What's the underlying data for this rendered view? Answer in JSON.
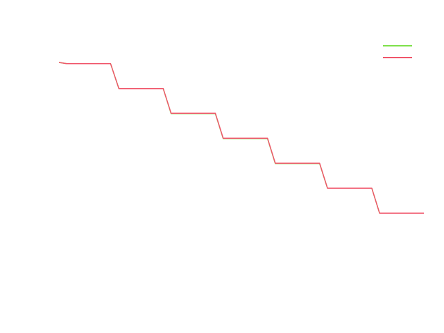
{
  "chart_data": {
    "type": "line",
    "title": "",
    "xlabel": "",
    "ylabel": "",
    "grid": false,
    "legend": "top-right",
    "xlim": [
      0,
      7
    ],
    "ylim": [
      0,
      7
    ],
    "series": [
      {
        "color": "#7ee04a",
        "x": [
          0,
          0.15,
          0.99,
          1.15,
          2.0,
          2.15,
          3.0,
          3.15,
          4.0,
          4.15,
          5.0,
          5.15,
          6.0,
          6.15,
          7.0
        ],
        "y": [
          6.0,
          5.97,
          5.97,
          5.37,
          5.37,
          4.77,
          4.77,
          4.17,
          4.17,
          3.57,
          3.57,
          2.98,
          2.98,
          2.38,
          2.38
        ]
      },
      {
        "color": "#f0556a",
        "x": [
          0,
          0.15,
          0.99,
          1.15,
          2.0,
          2.15,
          3.0,
          3.15,
          4.0,
          4.15,
          5.0,
          5.15,
          6.0,
          6.15,
          7.0
        ],
        "y": [
          6.0,
          5.97,
          5.97,
          5.37,
          5.37,
          4.78,
          4.78,
          4.18,
          4.18,
          3.58,
          3.58,
          2.98,
          2.98,
          2.38,
          2.38
        ]
      }
    ]
  }
}
